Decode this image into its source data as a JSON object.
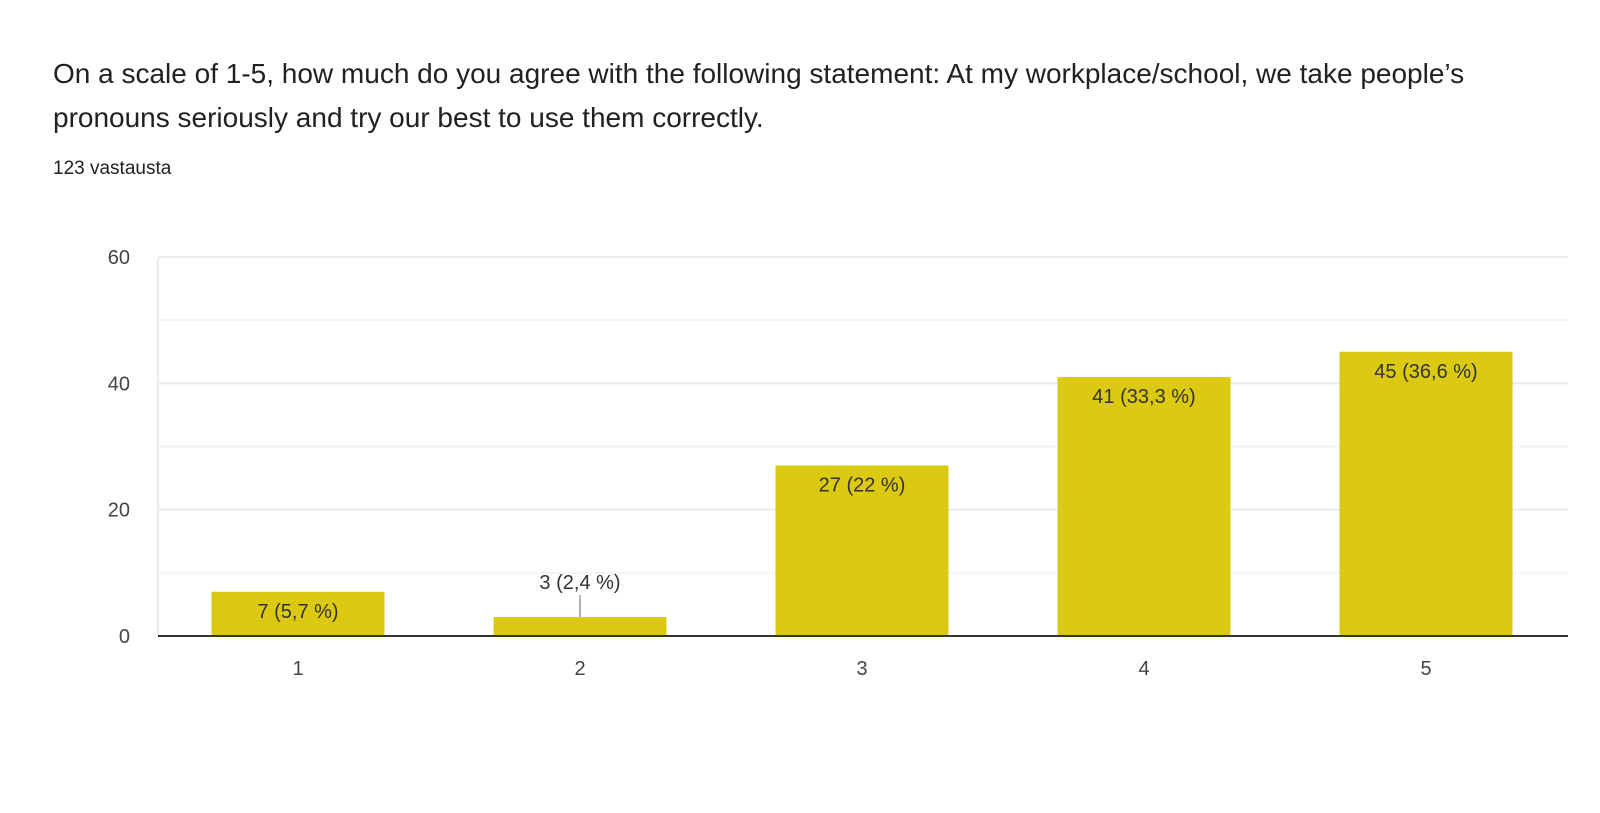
{
  "question": "On a scale of 1-5, how much do you agree with the following statement: At my workplace/school, we take people’s pronouns seriously and try our best to use them correctly.",
  "response_count": "123 vastausta",
  "chart_data": {
    "type": "bar",
    "categories": [
      "1",
      "2",
      "3",
      "4",
      "5"
    ],
    "values": [
      7,
      3,
      27,
      41,
      45
    ],
    "data_labels": [
      "7 (5,7 %)",
      "3 (2,4 %)",
      "27 (22 %)",
      "41 (33,3 %)",
      "45 (36,6 %)"
    ],
    "yticks": [
      "0",
      "20",
      "40",
      "60"
    ],
    "ylim": [
      0,
      60
    ],
    "grid": true,
    "bar_color": "#DBC912"
  }
}
